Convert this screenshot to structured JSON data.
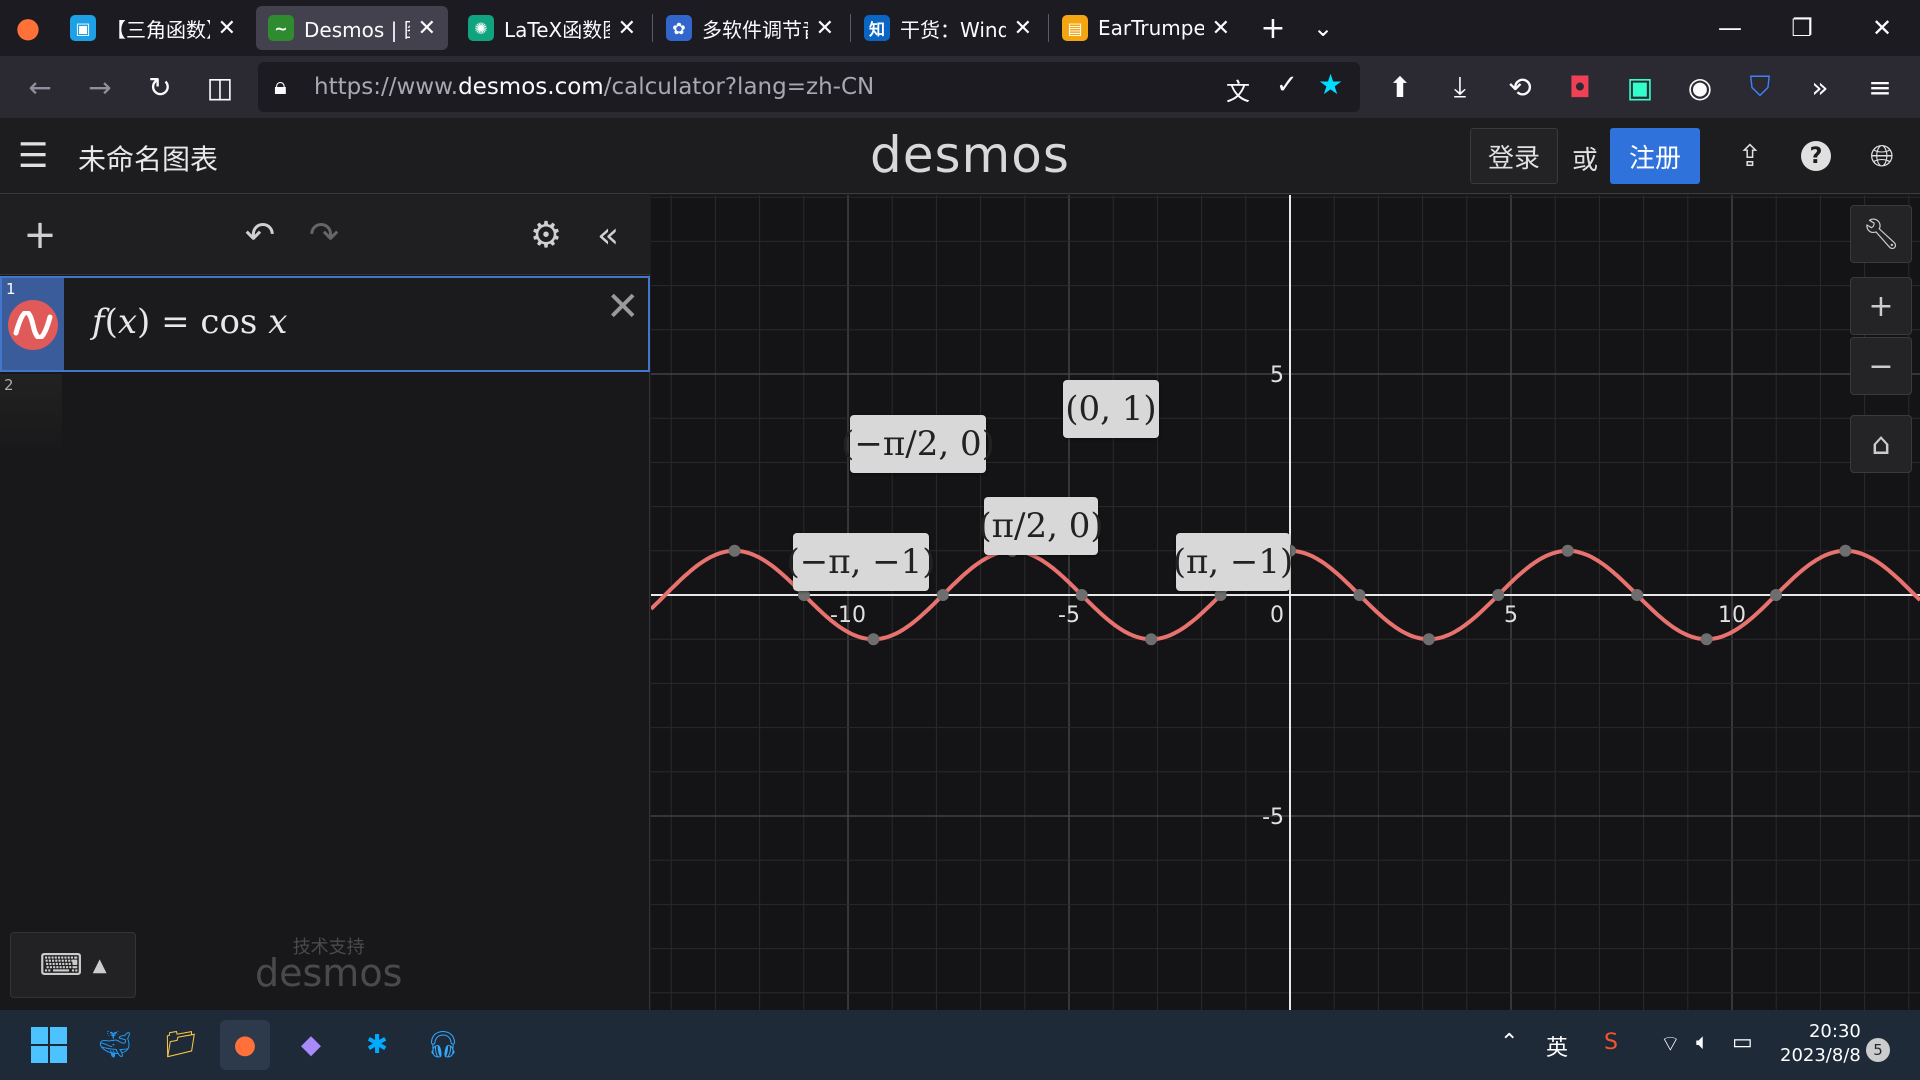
{
  "browser": {
    "tabs": [
      {
        "title": "【三角函数】【一",
        "favicon": "bilibili-icon",
        "color": "#1ea0e6"
      },
      {
        "title": "Desmos | 图形计",
        "favicon": "desmos-icon",
        "color": "#2f8b2f",
        "active": true
      },
      {
        "title": "LaTeX函数图像绘",
        "favicon": "openai-icon",
        "color": "#10a37f"
      },
      {
        "title": "多软件调节音量",
        "favicon": "baidu-icon",
        "color": "#3366cc"
      },
      {
        "title": "干货：Windwos",
        "favicon": "zhihu-icon",
        "color": "#0a66c2"
      },
      {
        "title": "EarTrumpet - Mi",
        "favicon": "store-icon",
        "color": "#f3a612"
      }
    ],
    "new_tab": "+",
    "url_host_prefix": "https://www.",
    "url_host": "desmos.com",
    "url_path": "/calculator?lang=zh-CN"
  },
  "header": {
    "title": "未命名图表",
    "logo": "desmos",
    "login_label": "登录",
    "or_label": "或",
    "signup_label": "注册"
  },
  "expressions": [
    {
      "index": "1",
      "color": "#e05a5a",
      "latex_f": "f",
      "latex_x": "x",
      "latex_eq": " = ",
      "latex_fn": "cos",
      "latex_arg": "x"
    },
    {
      "index": "2"
    }
  ],
  "powered_by": {
    "small": "技术支持",
    "logo": "desmos"
  },
  "graph": {
    "x_ticks": [
      "-10",
      "-5",
      "5",
      "10"
    ],
    "y_ticks": [
      "5",
      "-5"
    ],
    "origin_label": "0",
    "curve_color": "#e8726e",
    "points": [
      {
        "label": "(0, 1)"
      },
      {
        "label": "(−π/2, 0)"
      },
      {
        "label": "(π/2, 0)"
      },
      {
        "label": "(−π, −1)"
      },
      {
        "label": "(π, −1)"
      }
    ]
  },
  "taskbar": {
    "ime": "英",
    "time": "20:30",
    "date": "2023/8/8",
    "notification_count": "5"
  }
}
